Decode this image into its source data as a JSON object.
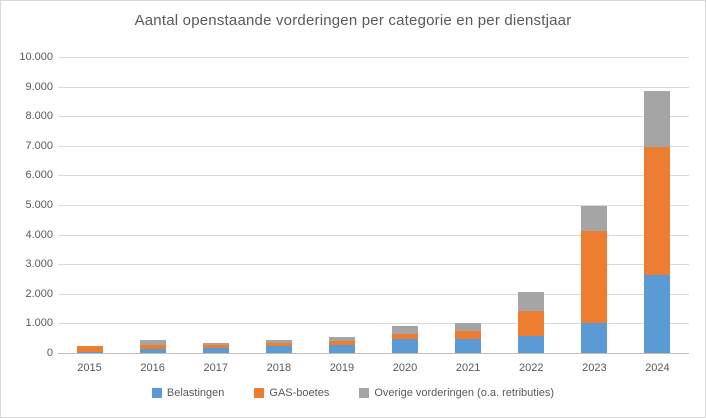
{
  "title": "Aantal openstaande vorderingen per categorie en per dienstjaar",
  "colors": {
    "belastingen": "#5B9BD5",
    "gas_boetes": "#ED7D31",
    "overige": "#A5A5A5",
    "gridline": "#D9D9D9",
    "axis_line": "#BFBFBF",
    "text": "#595959",
    "border": "#D9D9D9"
  },
  "chart_data": {
    "type": "bar",
    "stacked": true,
    "title": "Aantal openstaande vorderingen per categorie en per dienstjaar",
    "xlabel": "",
    "ylabel": "",
    "categories": [
      "2015",
      "2016",
      "2017",
      "2018",
      "2019",
      "2020",
      "2021",
      "2022",
      "2023",
      "2024"
    ],
    "series": [
      {
        "name": "Belastingen",
        "color": "#5B9BD5",
        "values": [
          40,
          120,
          160,
          220,
          270,
          480,
          480,
          580,
          1010,
          2650
        ]
      },
      {
        "name": "GAS-boetes",
        "color": "#ED7D31",
        "values": [
          200,
          150,
          100,
          120,
          140,
          160,
          250,
          850,
          3110,
          4300
        ]
      },
      {
        "name": "Overige vorderingen (o.a. retributies)",
        "color": "#A5A5A5",
        "values": [
          0,
          170,
          80,
          90,
          120,
          260,
          290,
          620,
          830,
          1900
        ]
      }
    ],
    "totals": [
      240,
      440,
      340,
      430,
      530,
      900,
      1020,
      2050,
      4950,
      8850
    ],
    "ylim": [
      0,
      10000
    ],
    "ytick_step": 1000,
    "ytick_labels": [
      "0",
      "1.000",
      "2.000",
      "3.000",
      "4.000",
      "5.000",
      "6.000",
      "7.000",
      "8.000",
      "9.000",
      "10.000"
    ],
    "grid": true,
    "legend_position": "bottom"
  }
}
